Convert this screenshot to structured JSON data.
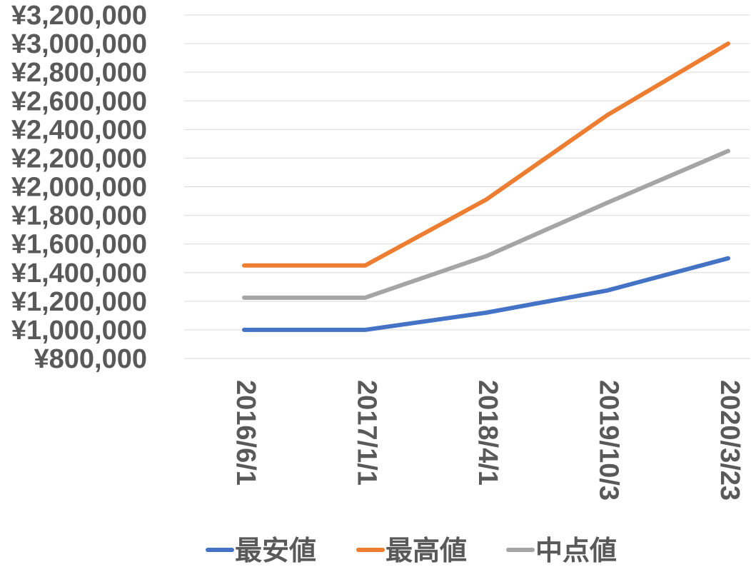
{
  "chart_data": {
    "type": "line",
    "categories": [
      "2016/6/1",
      "2017/1/1",
      "2018/4/1",
      "2019/10/3",
      "2020/3/23"
    ],
    "series": [
      {
        "name": "最安値",
        "color": "#4472c4",
        "values": [
          1000000,
          1000000,
          1120000,
          1275000,
          1500000
        ]
      },
      {
        "name": "最高値",
        "color": "#ed7d31",
        "values": [
          1450000,
          1450000,
          1910000,
          2500000,
          3000000
        ]
      },
      {
        "name": "中点値",
        "color": "#a5a5a5",
        "values": [
          1225000,
          1225000,
          1515000,
          1887500,
          2250000
        ]
      }
    ],
    "ylim": [
      800000,
      3200000
    ],
    "yticks": [
      {
        "value": 800000,
        "label": "¥800,000"
      },
      {
        "value": 1000000,
        "label": "¥1,000,000"
      },
      {
        "value": 1200000,
        "label": "¥1,200,000"
      },
      {
        "value": 1400000,
        "label": "¥1,400,000"
      },
      {
        "value": 1600000,
        "label": "¥1,600,000"
      },
      {
        "value": 1800000,
        "label": "¥1,800,000"
      },
      {
        "value": 2000000,
        "label": "¥2,000,000"
      },
      {
        "value": 2200000,
        "label": "¥2,200,000"
      },
      {
        "value": 2400000,
        "label": "¥2,400,000"
      },
      {
        "value": 2600000,
        "label": "¥2,600,000"
      },
      {
        "value": 2800000,
        "label": "¥2,800,000"
      },
      {
        "value": 3000000,
        "label": "¥3,000,000"
      },
      {
        "value": 3200000,
        "label": "¥3,200,000"
      }
    ],
    "grid": true,
    "legend_position": "bottom",
    "x_tick_rotation": "vertical",
    "title": "",
    "xlabel": "",
    "ylabel": ""
  }
}
